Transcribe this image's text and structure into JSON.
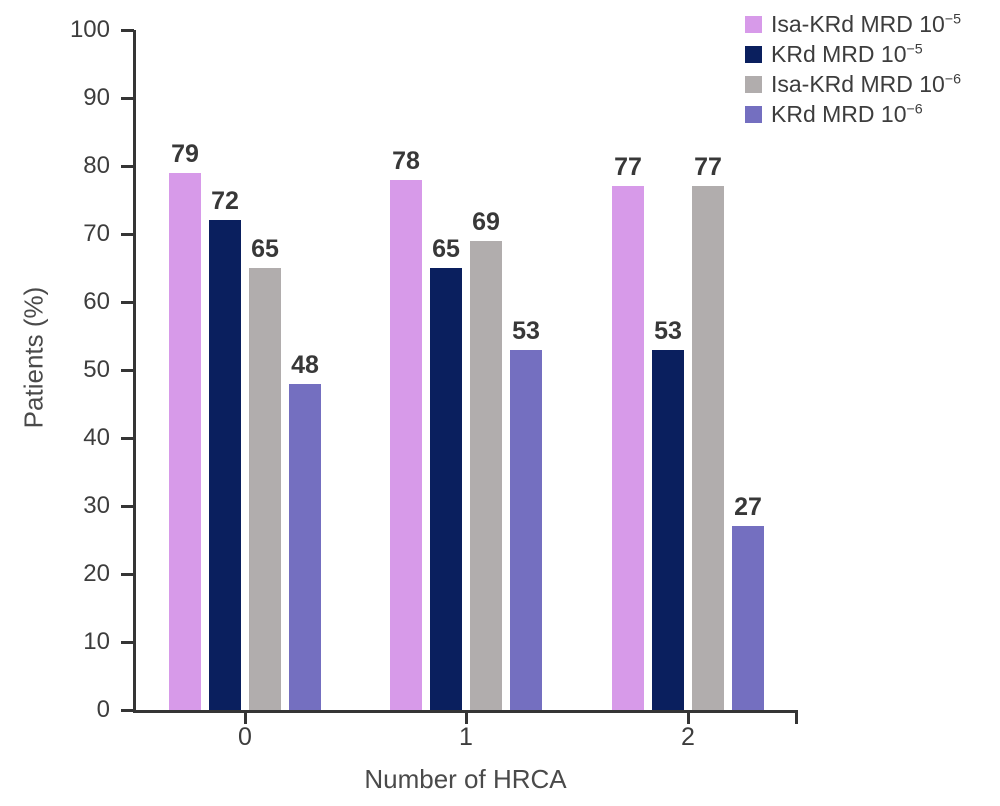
{
  "chart_data": {
    "type": "bar",
    "title": "",
    "xlabel": "Number of HRCA",
    "ylabel": "Patients (%)",
    "categories": [
      "0",
      "1",
      "2"
    ],
    "series": [
      {
        "name": "Isa-KRd MRD 10⁻⁵",
        "name_base": "Isa-KRd MRD 10",
        "name_sup": "−5",
        "color": "#d79ae9",
        "values": [
          79,
          78,
          77
        ]
      },
      {
        "name": "KRd MRD 10⁻⁵",
        "name_base": "KRd MRD 10",
        "name_sup": "−5",
        "color": "#0a1f5e",
        "values": [
          72,
          65,
          53
        ]
      },
      {
        "name": "Isa-KRd MRD 10⁻⁶",
        "name_base": "Isa-KRd MRD 10",
        "name_sup": "−6",
        "color": "#b1adad",
        "values": [
          65,
          69,
          77
        ]
      },
      {
        "name": "KRd MRD 10⁻⁶",
        "name_base": "KRd MRD 10",
        "name_sup": "−6",
        "color": "#746fc0",
        "values": [
          48,
          53,
          27
        ]
      }
    ],
    "ylim": [
      0,
      100
    ],
    "ytick_step": 10,
    "grid": false,
    "bar_value_labels": true,
    "legend_position": "top-right",
    "colors": {
      "axis": "#353535",
      "tick_label": "#3d3d3d",
      "value_label": "#383838",
      "axis_title": "#4a4a4a"
    }
  }
}
